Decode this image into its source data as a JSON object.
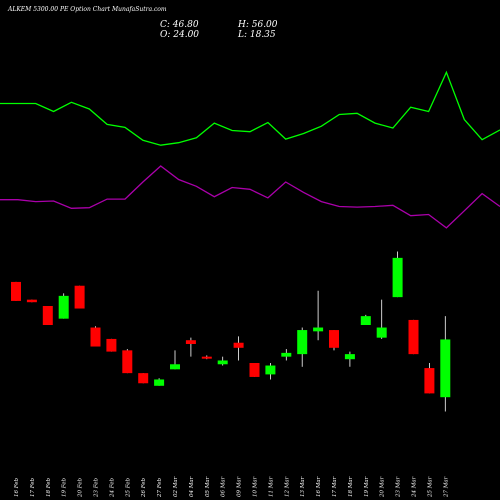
{
  "header": {
    "title": "ALKEM 5300.00 PE Option Chart MunafaSutra.com",
    "close_label": "C: 46.80",
    "open_label": "O: 24.00",
    "high_label": "H: 56.00",
    "low_label": "L: 18.35"
  },
  "colors": {
    "background": "#000000",
    "up": "#00ff00",
    "down": "#ff0000",
    "line_green": "#00ff00",
    "line_magenta": "#aa00aa",
    "wick": "#ffffff"
  },
  "chart_data": {
    "type": "candlestick",
    "ylim": [
      0,
      90
    ],
    "categories": [
      "16 Feb",
      "17 Feb",
      "18 Feb",
      "19 Feb",
      "20 Feb",
      "23 Feb",
      "24 Feb",
      "25 Feb",
      "26 Feb",
      "27 Feb",
      "02 Mar",
      "04 Mar",
      "05 Mar",
      "06 Mar",
      "09 Mar",
      "10 Mar",
      "11 Mar",
      "12 Mar",
      "13 Mar",
      "16 Mar",
      "17 Mar",
      "18 Mar",
      "19 Mar",
      "20 Mar",
      "23 Mar",
      "24 Mar",
      "25 Mar",
      "27 Mar"
    ],
    "candles": [
      {
        "o": 69.5,
        "h": 69.5,
        "l": 62.0,
        "c": 62.0
      },
      {
        "o": 62.5,
        "h": 62.5,
        "l": 61.5,
        "c": 61.5
      },
      {
        "o": 60.0,
        "h": 60.0,
        "l": 52.5,
        "c": 52.5
      },
      {
        "o": 55.0,
        "h": 65.0,
        "l": 55.0,
        "c": 64.0
      },
      {
        "o": 68.0,
        "h": 68.0,
        "l": 59.0,
        "c": 59.0
      },
      {
        "o": 51.5,
        "h": 52.0,
        "l": 44.0,
        "c": 44.0
      },
      {
        "o": 47.0,
        "h": 47.0,
        "l": 42.0,
        "c": 42.0
      },
      {
        "o": 42.5,
        "h": 43.0,
        "l": 33.5,
        "c": 33.5
      },
      {
        "o": 33.5,
        "h": 33.5,
        "l": 29.5,
        "c": 29.5
      },
      {
        "o": 28.5,
        "h": 31.5,
        "l": 28.5,
        "c": 31.0
      },
      {
        "o": 35.0,
        "h": 42.5,
        "l": 35.0,
        "c": 37.0
      },
      {
        "o": 46.5,
        "h": 47.5,
        "l": 40.0,
        "c": 45.0
      },
      {
        "o": 40.0,
        "h": 40.5,
        "l": 39.0,
        "c": 39.5
      },
      {
        "o": 37.0,
        "h": 40.0,
        "l": 36.5,
        "c": 38.5
      },
      {
        "o": 45.5,
        "h": 48.0,
        "l": 38.5,
        "c": 43.5
      },
      {
        "o": 37.5,
        "h": 37.5,
        "l": 32.0,
        "c": 32.0
      },
      {
        "o": 33.0,
        "h": 37.5,
        "l": 31.0,
        "c": 36.5
      },
      {
        "o": 40.0,
        "h": 43.0,
        "l": 38.5,
        "c": 41.5
      },
      {
        "o": 41.0,
        "h": 51.5,
        "l": 36.0,
        "c": 50.5
      },
      {
        "o": 50.0,
        "h": 66.0,
        "l": 46.5,
        "c": 51.5
      },
      {
        "o": 50.5,
        "h": 50.5,
        "l": 42.5,
        "c": 43.5
      },
      {
        "o": 39.0,
        "h": 42.0,
        "l": 36.0,
        "c": 41.0
      },
      {
        "o": 52.5,
        "h": 56.5,
        "l": 52.5,
        "c": 56.0
      },
      {
        "o": 47.5,
        "h": 62.5,
        "l": 47.0,
        "c": 51.5
      },
      {
        "o": 63.5,
        "h": 81.5,
        "l": 63.5,
        "c": 79.0
      },
      {
        "o": 54.5,
        "h": 54.5,
        "l": 41.0,
        "c": 41.0
      },
      {
        "o": 35.5,
        "h": 37.5,
        "l": 25.5,
        "c": 25.5
      },
      {
        "o": 24.0,
        "h": 56.0,
        "l": 18.35,
        "c": 46.8
      }
    ],
    "lines": [
      {
        "color": "#00ff00",
        "points": [
          389,
          389,
          389,
          376,
          391,
          380,
          355,
          350,
          329,
          321,
          325,
          333,
          357,
          345,
          343,
          358,
          331,
          340,
          352,
          371,
          373,
          357,
          349,
          383,
          376,
          440,
          363,
          330,
          346
        ]
      },
      {
        "color": "#aa00aa",
        "points": [
          232,
          232,
          229,
          230,
          218,
          219,
          233,
          233,
          261,
          287,
          265,
          254,
          237,
          252,
          249,
          235,
          261,
          244,
          229,
          221,
          220,
          221,
          223,
          206,
          208,
          186,
          214,
          242,
          221
        ]
      }
    ]
  }
}
